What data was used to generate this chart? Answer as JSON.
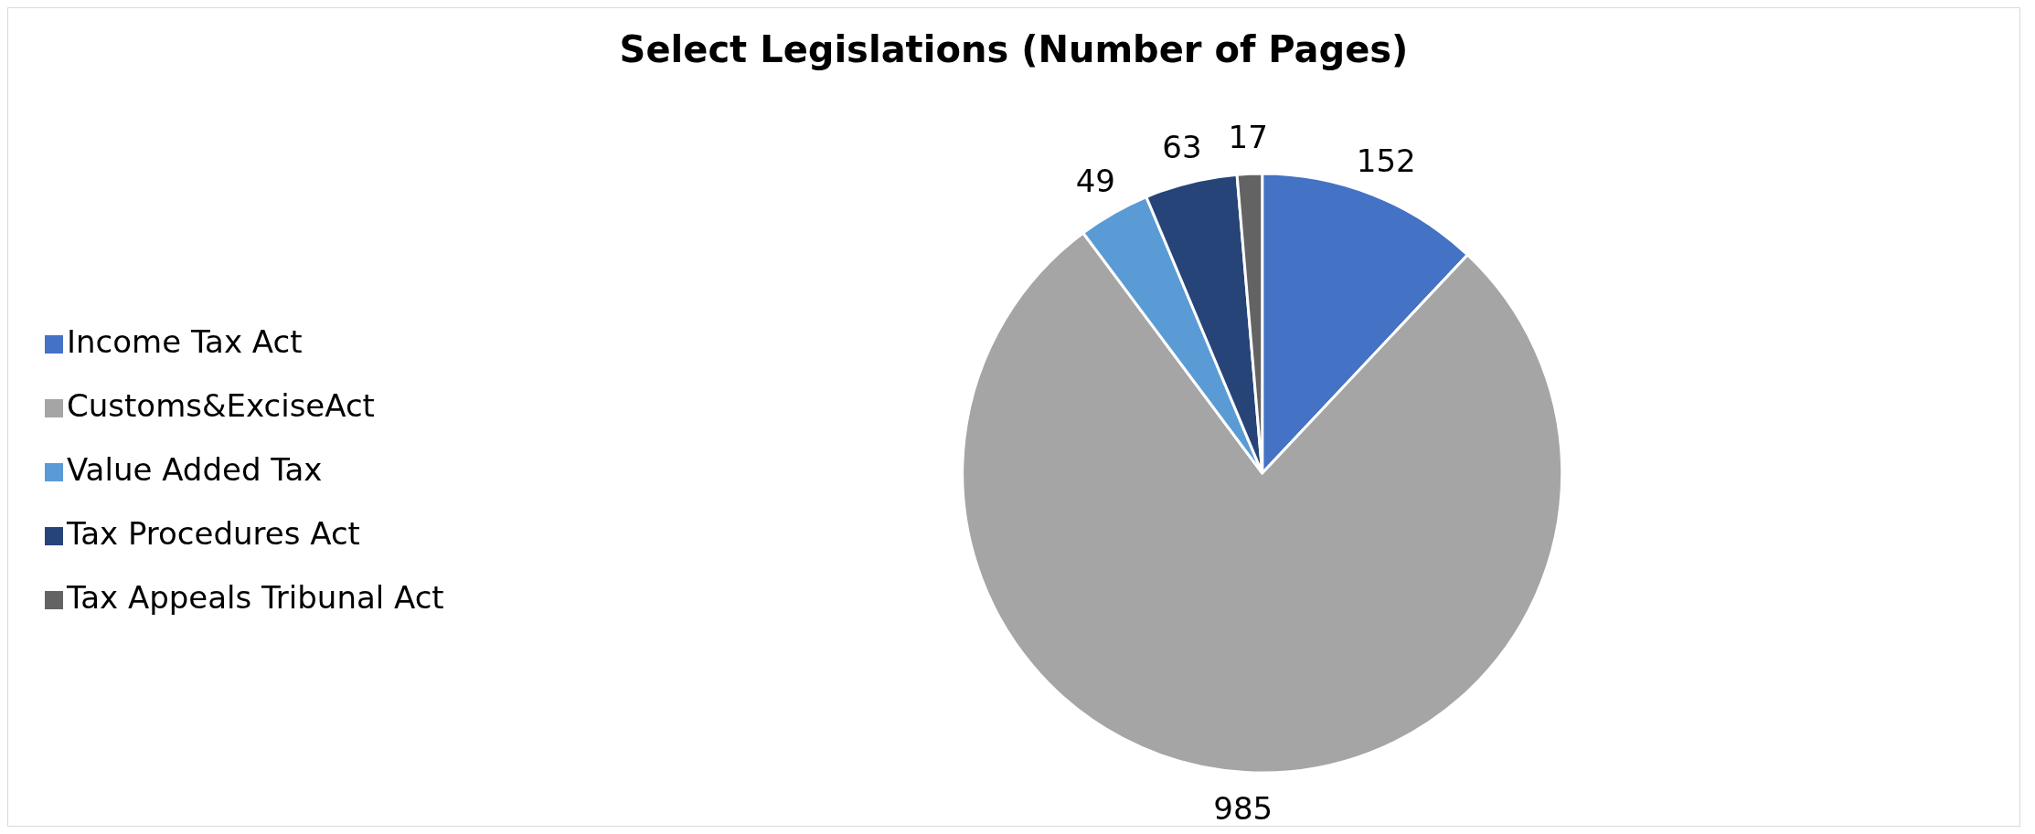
{
  "chart_data": {
    "type": "pie",
    "title": "Select Legislations (Number of Pages)",
    "categories": [
      "Income Tax Act",
      "Customs&ExciseAct",
      "Value Added Tax",
      "Tax Procedures Act",
      "Tax Appeals Tribunal Act"
    ],
    "values": [
      152,
      985,
      49,
      63,
      17
    ],
    "colors": [
      "#4472c4",
      "#a5a5a5",
      "#5b9bd5",
      "#264478",
      "#636363"
    ],
    "data_labels": true,
    "legend": "left"
  }
}
